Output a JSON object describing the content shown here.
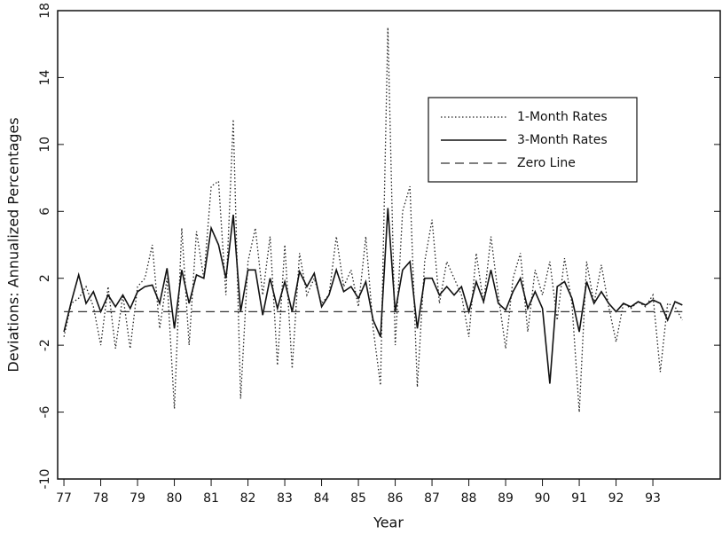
{
  "chart_data": {
    "type": "line",
    "xlabel": "Year",
    "ylabel": "Deviations: Annualized Percentages",
    "x": [
      77.0,
      77.2,
      77.4,
      77.6,
      77.8,
      78.0,
      78.2,
      78.4,
      78.6,
      78.8,
      79.0,
      79.2,
      79.4,
      79.6,
      79.8,
      80.0,
      80.2,
      80.4,
      80.6,
      80.8,
      81.0,
      81.2,
      81.4,
      81.6,
      81.8,
      82.0,
      82.2,
      82.4,
      82.6,
      82.8,
      83.0,
      83.2,
      83.4,
      83.6,
      83.8,
      84.0,
      84.2,
      84.4,
      84.6,
      84.8,
      85.0,
      85.2,
      85.4,
      85.6,
      85.8,
      86.0,
      86.2,
      86.4,
      86.6,
      86.8,
      87.0,
      87.2,
      87.4,
      87.6,
      87.8,
      88.0,
      88.2,
      88.4,
      88.6,
      88.8,
      89.0,
      89.2,
      89.4,
      89.6,
      89.8,
      90.0,
      90.2,
      90.4,
      90.6,
      90.8,
      91.0,
      91.2,
      91.4,
      91.6,
      91.8,
      92.0,
      92.2,
      92.4,
      92.6,
      92.8,
      93.0,
      93.2,
      93.4,
      93.6,
      93.8
    ],
    "series": [
      {
        "name": "1-Month Rates",
        "color": "#222222",
        "dash": "dotted",
        "values": [
          -1.5,
          0.5,
          0.8,
          1.5,
          0.3,
          -2.0,
          1.5,
          -2.2,
          1.0,
          -2.2,
          1.5,
          2.0,
          4.0,
          -1.0,
          2.0,
          -5.8,
          5.0,
          -2.0,
          4.8,
          2.0,
          7.5,
          7.8,
          1.0,
          11.5,
          -5.2,
          3.0,
          5.0,
          1.0,
          4.5,
          -3.2,
          4.0,
          -3.4,
          3.5,
          1.0,
          2.0,
          0.5,
          1.0,
          4.5,
          1.5,
          2.5,
          0.3,
          4.5,
          -1.0,
          -4.4,
          17.0,
          -2.0,
          6.0,
          7.5,
          -4.5,
          3.0,
          5.5,
          0.5,
          3.0,
          2.0,
          1.0,
          -1.5,
          3.5,
          0.5,
          4.5,
          1.0,
          -2.2,
          2.0,
          3.5,
          -1.2,
          2.5,
          1.0,
          3.0,
          -0.5,
          3.2,
          0.5,
          -6.0,
          3.0,
          0.5,
          2.8,
          0.3,
          -1.8,
          0.5,
          0.2,
          0.6,
          0.3,
          1.0,
          -3.6,
          0.5,
          0.3,
          -0.5
        ]
      },
      {
        "name": "3-Month Rates",
        "color": "#111111",
        "dash": "solid",
        "values": [
          -1.2,
          0.6,
          2.2,
          0.5,
          1.2,
          0.0,
          1.0,
          0.3,
          1.0,
          0.2,
          1.2,
          1.5,
          1.6,
          0.5,
          2.6,
          -1.0,
          2.5,
          0.5,
          2.2,
          2.0,
          5.0,
          4.0,
          2.0,
          5.8,
          0.0,
          2.5,
          2.5,
          -0.2,
          2.0,
          0.2,
          1.8,
          0.0,
          2.4,
          1.5,
          2.3,
          0.3,
          1.0,
          2.5,
          1.2,
          1.5,
          0.8,
          1.8,
          -0.5,
          -1.5,
          6.2,
          0.0,
          2.5,
          3.0,
          -1.0,
          2.0,
          2.0,
          1.0,
          1.5,
          1.0,
          1.5,
          0.0,
          1.8,
          0.6,
          2.5,
          0.5,
          0.1,
          1.2,
          2.0,
          0.2,
          1.2,
          0.2,
          -4.3,
          1.5,
          1.8,
          0.8,
          -1.2,
          1.8,
          0.5,
          1.2,
          0.5,
          0.0,
          0.5,
          0.3,
          0.6,
          0.4,
          0.7,
          0.5,
          -0.5,
          0.6,
          0.4
        ]
      },
      {
        "name": "Zero Line",
        "color": "#333333",
        "dash": "dashed",
        "x": [
          77.0,
          93.8
        ],
        "values": [
          0,
          0
        ]
      }
    ],
    "xlim": [
      76.83,
      94.83
    ],
    "xticks": [
      77,
      78,
      79,
      80,
      81,
      82,
      83,
      84,
      85,
      86,
      87,
      88,
      89,
      90,
      91,
      92,
      93
    ],
    "ylim": [
      -10,
      18
    ],
    "yticks": [
      -10,
      -6,
      -2,
      2,
      6,
      10,
      14,
      18
    ],
    "legend": "upper-right"
  }
}
